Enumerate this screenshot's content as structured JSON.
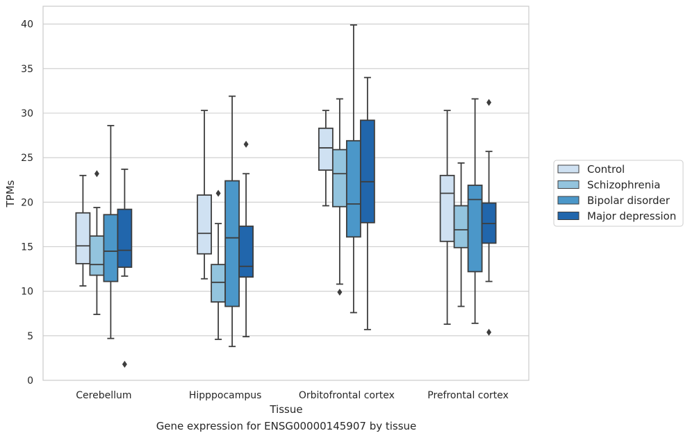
{
  "caption": "Gene expression for ENSG00000145907 by tissue",
  "chart_data": {
    "type": "box",
    "xlabel": "Tissue",
    "ylabel": "TPMs",
    "ylim": [
      0,
      42
    ],
    "yticks": [
      0,
      5,
      10,
      15,
      20,
      25,
      30,
      35,
      40
    ],
    "grid": true,
    "legend_position": "right",
    "categories": [
      "Cerebellum",
      "Hipppocampus",
      "Orbitofrontal cortex",
      "Prefrontal cortex"
    ],
    "series": [
      {
        "name": "Control",
        "color": "#cfe1f2",
        "boxes": [
          {
            "whislo": 10.6,
            "q1": 13.1,
            "med": 15.1,
            "q3": 18.8,
            "whishi": 23.0,
            "fliers": []
          },
          {
            "whislo": 11.4,
            "q1": 14.2,
            "med": 16.5,
            "q3": 20.8,
            "whishi": 30.3,
            "fliers": []
          },
          {
            "whislo": 19.6,
            "q1": 23.6,
            "med": 26.1,
            "q3": 28.3,
            "whishi": 30.3,
            "fliers": []
          },
          {
            "whislo": 6.3,
            "q1": 15.6,
            "med": 21.0,
            "q3": 23.0,
            "whishi": 30.3,
            "fliers": []
          }
        ]
      },
      {
        "name": "Schizophrenia",
        "color": "#93c4de",
        "boxes": [
          {
            "whislo": 7.4,
            "q1": 11.8,
            "med": 13.0,
            "q3": 16.2,
            "whishi": 19.4,
            "fliers": [
              23.2
            ]
          },
          {
            "whislo": 4.6,
            "q1": 8.8,
            "med": 11.0,
            "q3": 13.0,
            "whishi": 17.6,
            "fliers": [
              21.0
            ]
          },
          {
            "whislo": 10.8,
            "q1": 19.5,
            "med": 23.2,
            "q3": 25.9,
            "whishi": 31.6,
            "fliers": [
              9.9
            ]
          },
          {
            "whislo": 8.3,
            "q1": 14.9,
            "med": 16.9,
            "q3": 19.6,
            "whishi": 24.4,
            "fliers": []
          }
        ]
      },
      {
        "name": "Bipolar disorder",
        "color": "#4b97c9",
        "boxes": [
          {
            "whislo": 4.7,
            "q1": 11.1,
            "med": 14.5,
            "q3": 18.6,
            "whishi": 28.6,
            "fliers": []
          },
          {
            "whislo": 3.8,
            "q1": 8.3,
            "med": 16.0,
            "q3": 22.4,
            "whishi": 31.9,
            "fliers": []
          },
          {
            "whislo": 7.6,
            "q1": 16.1,
            "med": 19.8,
            "q3": 26.9,
            "whishi": 39.9,
            "fliers": []
          },
          {
            "whislo": 6.4,
            "q1": 12.2,
            "med": 20.3,
            "q3": 21.9,
            "whishi": 31.6,
            "fliers": []
          }
        ]
      },
      {
        "name": "Major depression",
        "color": "#2166ac",
        "boxes": [
          {
            "whislo": 11.7,
            "q1": 12.7,
            "med": 14.6,
            "q3": 19.2,
            "whishi": 23.7,
            "fliers": [
              1.8
            ]
          },
          {
            "whislo": 4.9,
            "q1": 11.6,
            "med": 12.8,
            "q3": 17.3,
            "whishi": 23.2,
            "fliers": [
              26.5
            ]
          },
          {
            "whislo": 5.7,
            "q1": 17.7,
            "med": 22.3,
            "q3": 29.2,
            "whishi": 34.0,
            "fliers": []
          },
          {
            "whislo": 11.1,
            "q1": 15.4,
            "med": 17.6,
            "q3": 19.9,
            "whishi": 25.7,
            "fliers": [
              31.2,
              5.4
            ]
          }
        ]
      }
    ]
  }
}
